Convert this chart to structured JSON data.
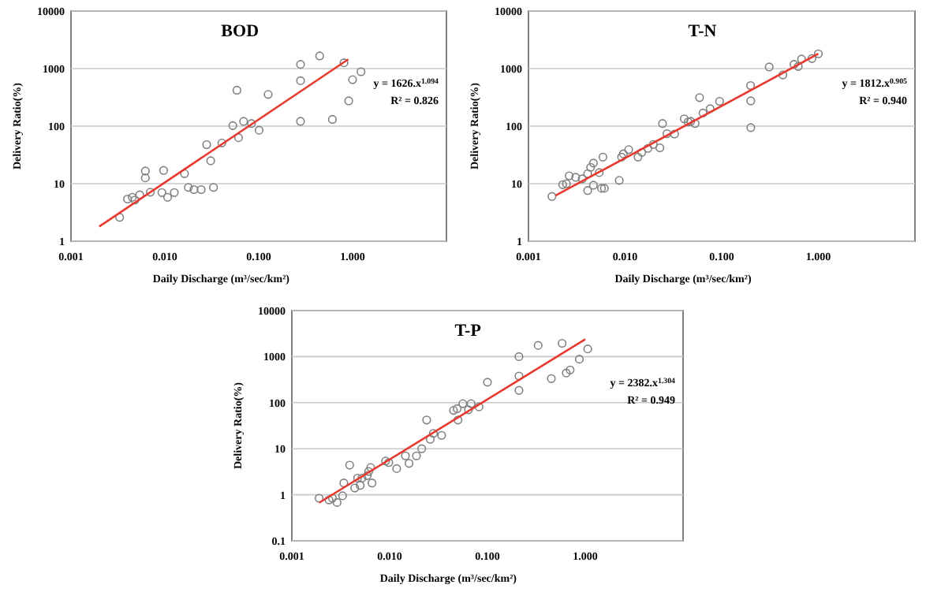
{
  "chart_data": [
    {
      "type": "scatter",
      "title": "BOD",
      "xlabel": "Daily Discharge (m³/sec/km²)",
      "ylabel": "Delivery Ratio(%)",
      "log": "xy",
      "grid": "y",
      "xlim": [
        0.001,
        10
      ],
      "xticks": [
        {
          "value": 0.001,
          "label": "0.001"
        },
        {
          "value": 0.01,
          "label": "0.010"
        },
        {
          "value": 0.1,
          "label": "0.100"
        },
        {
          "value": 1,
          "label": "1.000"
        }
      ],
      "ylim": [
        1,
        10000
      ],
      "yticks": [
        1,
        10,
        100,
        1000,
        10000
      ],
      "annotations": [
        "y = 1626.x$^{1.094}$",
        "R² = 0.826"
      ],
      "series": [
        {
          "color": "#808080",
          "marker": "circle",
          "x": [
            0.0033,
            0.004,
            0.0045,
            0.0048,
            0.0054,
            0.0062,
            0.0062,
            0.007,
            0.0097,
            0.0093,
            0.0107,
            0.0126,
            0.0162,
            0.0178,
            0.0204,
            0.0244,
            0.0279,
            0.0308,
            0.033,
            0.0405,
            0.053,
            0.0586,
            0.061,
            0.069,
            0.0837,
            0.101,
            0.126,
            0.279,
            0.279,
            0.279,
            0.446,
            0.61,
            0.81,
            0.91,
            1.0,
            1.23
          ],
          "values": [
            2.6,
            5.4,
            5.8,
            5.2,
            6.4,
            16.6,
            12.6,
            7.1,
            17,
            7.0,
            5.8,
            7.0,
            14.9,
            8.6,
            7.9,
            7.9,
            47.7,
            25,
            8.6,
            51,
            102,
            421,
            63,
            121,
            111,
            85,
            355,
            1183,
            615,
            121,
            1660,
            131,
            1260,
            275,
            641,
            881
          ]
        },
        {
          "type": "line",
          "color": "#e8392f",
          "marker": "none",
          "x": [
            0.002,
            0.9
          ],
          "values": [
            1.8,
            1450
          ]
        }
      ]
    },
    {
      "type": "scatter",
      "title": "T-N",
      "xlabel": "Daily Discharge (m³/sec/km²)",
      "ylabel": "Delivery Ratio(%)",
      "log": "xy",
      "grid": "y",
      "xlim": [
        0.001,
        10
      ],
      "xticks": [
        {
          "value": 0.001,
          "label": "0.001"
        },
        {
          "value": 0.01,
          "label": "0.010"
        },
        {
          "value": 0.1,
          "label": "0.100"
        },
        {
          "value": 1,
          "label": "1.000"
        }
      ],
      "ylim": [
        1,
        10000
      ],
      "yticks": [
        1,
        10,
        100,
        1000,
        10000
      ],
      "annotations": [
        "y = 1812.x$^{0.905}$",
        "R² = 0.940"
      ],
      "series": [
        {
          "color": "#808080",
          "marker": "circle",
          "x": [
            0.00175,
            0.00226,
            0.00247,
            0.00264,
            0.00308,
            0.0036,
            0.0041,
            0.0044,
            0.0047,
            0.0041,
            0.0047,
            0.0054,
            0.0057,
            0.0059,
            0.0061,
            0.0087,
            0.0092,
            0.0096,
            0.0109,
            0.0136,
            0.0149,
            0.0172,
            0.0196,
            0.0229,
            0.0244,
            0.0271,
            0.0325,
            0.041,
            0.045,
            0.0478,
            0.053,
            0.059,
            0.064,
            0.076,
            0.095,
            0.199,
            0.2,
            0.2,
            0.31,
            0.43,
            0.56,
            0.62,
            0.67,
            0.86,
            1.0
          ],
          "values": [
            6.0,
            9.6,
            10,
            13.7,
            12.9,
            12.1,
            14.9,
            19.2,
            22.8,
            7.6,
            9.4,
            15.6,
            8.3,
            29,
            8.3,
            11.4,
            29,
            33,
            39,
            29,
            35,
            41,
            48,
            42,
            111,
            74,
            73,
            134,
            118,
            121,
            111,
            313,
            169,
            201,
            270,
            508,
            275,
            94,
            1067,
            776,
            1183,
            1089,
            1462,
            1493,
            1807
          ]
        },
        {
          "type": "line",
          "color": "#e8392f",
          "marker": "none",
          "x": [
            0.0019,
            1
          ],
          "values": [
            6.2,
            1812
          ]
        }
      ]
    },
    {
      "type": "scatter",
      "title": "T-P",
      "xlabel": "Daily Discharge (m³/sec/km²)",
      "ylabel": "Delivery Ratio(%)",
      "log": "xy",
      "grid": "y",
      "xlim": [
        0.001,
        10
      ],
      "xticks": [
        {
          "value": 0.001,
          "label": "0.001"
        },
        {
          "value": 0.01,
          "label": "0.010"
        },
        {
          "value": 0.1,
          "label": "0.100"
        },
        {
          "value": 1,
          "label": "1.000"
        }
      ],
      "ylim": [
        0.1,
        10000
      ],
      "yticks": [
        0.1,
        1,
        10,
        100,
        1000,
        10000
      ],
      "annotations": [
        "y = 2382.x$^{1.304}$",
        "R² = 0.949"
      ],
      "series": [
        {
          "color": "#808080",
          "marker": "circle",
          "x": [
            0.0019,
            0.0024,
            0.0026,
            0.0029,
            0.0033,
            0.0034,
            0.0039,
            0.0044,
            0.0047,
            0.005,
            0.0052,
            0.0059,
            0.0061,
            0.0064,
            0.0066,
            0.0091,
            0.0098,
            0.0118,
            0.0145,
            0.0158,
            0.0188,
            0.0213,
            0.0239,
            0.026,
            0.028,
            0.034,
            0.045,
            0.049,
            0.05,
            0.056,
            0.064,
            0.068,
            0.082,
            0.1,
            0.21,
            0.21,
            0.21,
            0.33,
            0.45,
            0.58,
            0.64,
            0.7,
            0.87,
            1.06
          ],
          "values": [
            0.84,
            0.77,
            0.84,
            0.68,
            0.95,
            1.8,
            4.4,
            1.4,
            2.3,
            1.6,
            2.3,
            2.6,
            3.2,
            3.9,
            1.8,
            5.4,
            5.0,
            3.7,
            7.0,
            4.8,
            7.0,
            10,
            42,
            16,
            21.5,
            19.5,
            68,
            74,
            42,
            95,
            70,
            95,
            81,
            278,
            1000,
            378,
            185,
            1754,
            333,
            1945,
            441,
            514,
            879,
            1469
          ]
        },
        {
          "type": "line",
          "color": "#e8392f",
          "marker": "none",
          "x": [
            0.0019,
            1
          ],
          "values": [
            0.67,
            2382
          ]
        }
      ]
    }
  ]
}
